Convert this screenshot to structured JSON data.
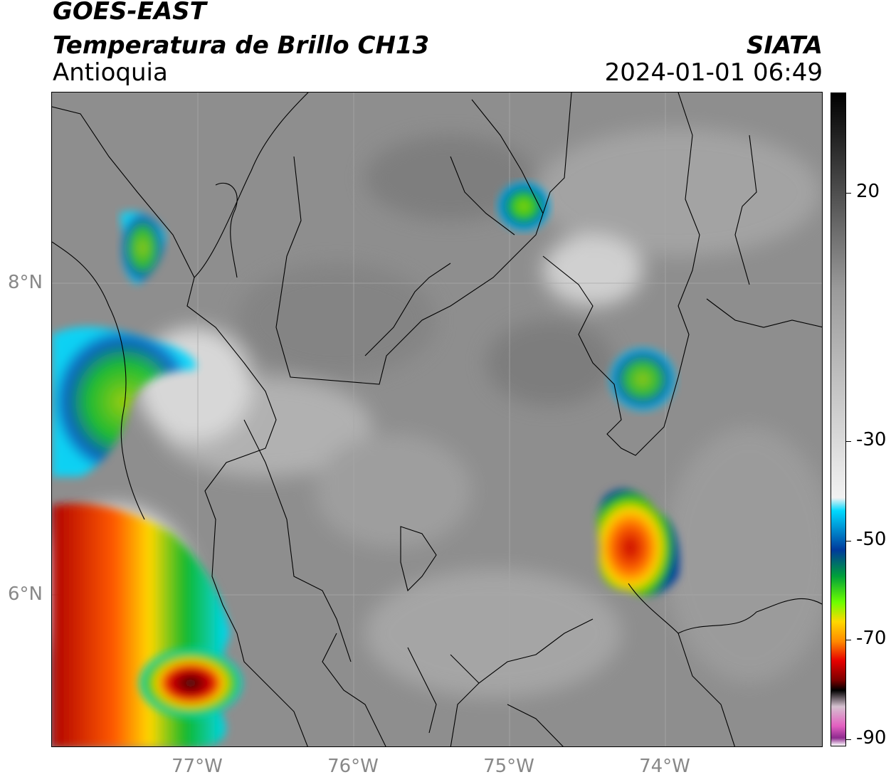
{
  "header": {
    "satellite": "GOES-EAST",
    "product": "Temperatura de Brillo CH13",
    "region": "Antioquia",
    "agency": "SIATA",
    "datetime": "2024-01-01 06:49"
  },
  "map": {
    "lat_ticks": [
      "8°N",
      "6°N"
    ],
    "lon_ticks": [
      "77°W",
      "76°W",
      "75°W",
      "74°W"
    ],
    "background_color": "#8a8a8a",
    "gridlines": true
  },
  "colorbar": {
    "unit_hidden": true,
    "ticks": [
      "20",
      "-30",
      "-50",
      "-70",
      "-90"
    ],
    "stops": [
      "#ffffff",
      "#8e2a8e",
      "#e35fc0",
      "#d6c1d0",
      "#000000",
      "#7a0000",
      "#e60000",
      "#ff8a00",
      "#ffd800",
      "#6cff00",
      "#00a03a",
      "#003a9c",
      "#00d9ff",
      "#f2f2f2",
      "#9a9a9a",
      "#000000"
    ]
  }
}
